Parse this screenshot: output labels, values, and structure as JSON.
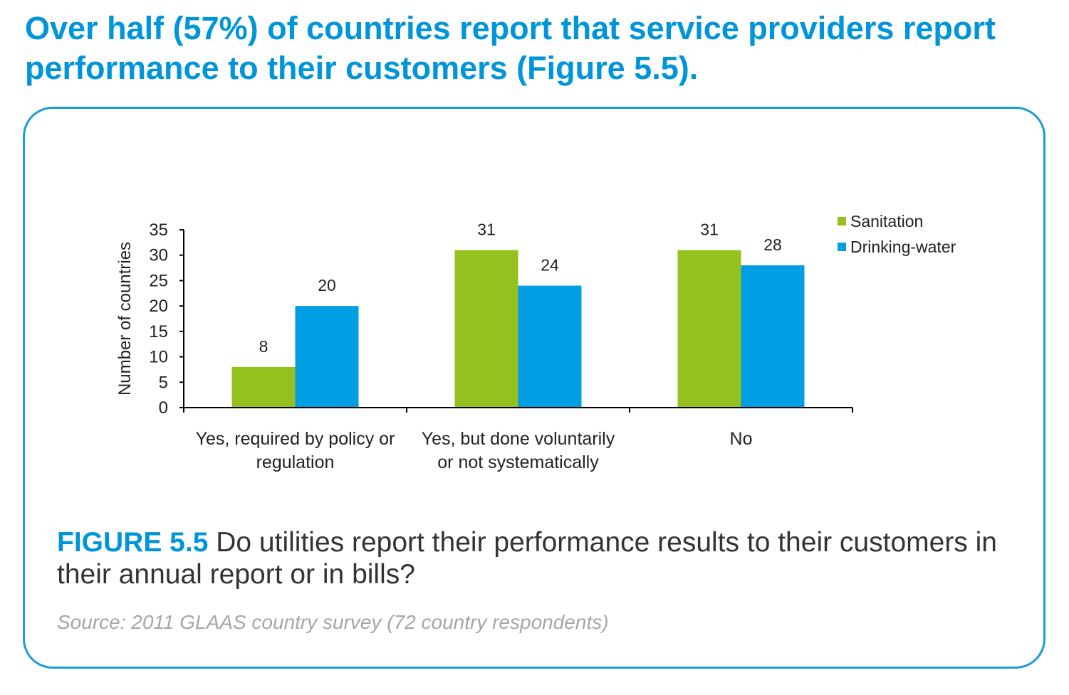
{
  "heading": "Over half (57%) of countries report that service providers report performance to their customers (Figure 5.5).",
  "figure": {
    "label": "FIGURE 5.5",
    "caption": "Do utilities report their performance results to their customers in their annual report or in bills?",
    "source": "Source: 2011 GLAAS country survey (72 country respondents)"
  },
  "colors": {
    "accent": "#0095da",
    "caption_text": "#333333",
    "source_text": "#a6a6a6"
  },
  "chart_data": {
    "type": "bar",
    "categories": [
      "Yes, required by policy or regulation",
      "Yes, but done voluntarily or not systematically",
      "No"
    ],
    "series": [
      {
        "name": "Sanitation",
        "values": [
          8,
          31,
          31
        ],
        "color": "#95c11f"
      },
      {
        "name": "Drinking-water",
        "values": [
          20,
          24,
          28
        ],
        "color": "#009fe3"
      }
    ],
    "ylabel": "Number of countries",
    "ylim": [
      0,
      35
    ],
    "yticks": [
      0,
      5,
      10,
      15,
      20,
      25,
      30,
      35
    ],
    "legend": "top-right",
    "grid": false
  }
}
